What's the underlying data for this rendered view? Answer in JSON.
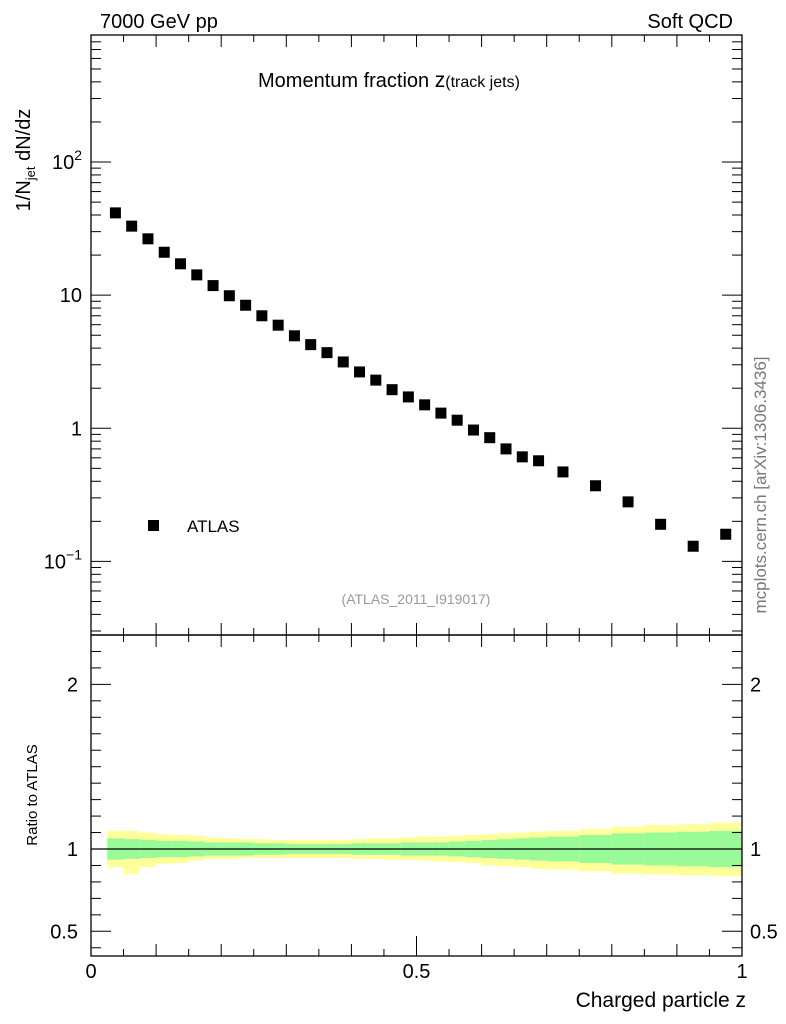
{
  "header": {
    "left": "7000 GeV pp",
    "right": "Soft QCD"
  },
  "side_label": "mcplots.cern.ch [arXiv:1306.3436]",
  "chart_data": {
    "type": "scatter",
    "title": {
      "main": "Momentum fraction ",
      "var": "z",
      "sub": "(track jets)"
    },
    "ylabel": {
      "a": "1/N",
      "sub": "jet",
      "b": " dN/dz"
    },
    "xlabel": "Charged particle z",
    "analysis_tag": "(ATLAS_2011_I919017)",
    "legend": {
      "entry": "ATLAS",
      "position": "lower-left"
    },
    "yscale": "log",
    "xlim": [
      0,
      1
    ],
    "ylim": [
      0.028,
      900
    ],
    "xticks": [
      {
        "v": 0,
        "label": "0"
      },
      {
        "v": 0.5,
        "label": "0.5"
      },
      {
        "v": 1,
        "label": "1"
      }
    ],
    "yticks_main": [
      {
        "v": 0.1,
        "base": "10",
        "exp": "−1"
      },
      {
        "v": 1,
        "base": "1",
        "exp": ""
      },
      {
        "v": 10,
        "base": "10",
        "exp": ""
      },
      {
        "v": 100,
        "base": "10",
        "exp": "2"
      }
    ],
    "series": [
      {
        "name": "ATLAS",
        "points": [
          [
            0.0375,
            41.5
          ],
          [
            0.0625,
            33.0
          ],
          [
            0.0875,
            26.5
          ],
          [
            0.1125,
            21.0
          ],
          [
            0.1375,
            17.2
          ],
          [
            0.1625,
            14.2
          ],
          [
            0.1875,
            11.8
          ],
          [
            0.2125,
            9.9
          ],
          [
            0.2375,
            8.4
          ],
          [
            0.2625,
            7.0
          ],
          [
            0.2875,
            5.95
          ],
          [
            0.3125,
            4.95
          ],
          [
            0.3375,
            4.25
          ],
          [
            0.3625,
            3.7
          ],
          [
            0.3875,
            3.15
          ],
          [
            0.4125,
            2.65
          ],
          [
            0.4375,
            2.3
          ],
          [
            0.4625,
            1.95
          ],
          [
            0.4875,
            1.72
          ],
          [
            0.5125,
            1.5
          ],
          [
            0.5375,
            1.3
          ],
          [
            0.5625,
            1.15
          ],
          [
            0.5875,
            0.97
          ],
          [
            0.6125,
            0.85
          ],
          [
            0.6375,
            0.7
          ],
          [
            0.6625,
            0.61
          ],
          [
            0.6875,
            0.57
          ],
          [
            0.725,
            0.47
          ],
          [
            0.775,
            0.37
          ],
          [
            0.825,
            0.28
          ],
          [
            0.875,
            0.19
          ],
          [
            0.925,
            0.13
          ],
          [
            0.975,
            0.16
          ]
        ]
      }
    ],
    "ratio": {
      "ylabel": "Ratio to ATLAS",
      "ylim": [
        0.35,
        2.3
      ],
      "yticks": [
        {
          "v": 0.5,
          "label": "0.5"
        },
        {
          "v": 1,
          "label": "1"
        },
        {
          "v": 2,
          "label": "2"
        }
      ],
      "reference_line": 1,
      "stat_color": "#98fb98",
      "total_color": "#ffff99",
      "bands": [
        [
          0.025,
          0.05,
          0.935,
          1.065,
          0.89,
          1.11
        ],
        [
          0.05,
          0.075,
          0.94,
          1.06,
          0.85,
          1.11
        ],
        [
          0.075,
          0.1,
          0.945,
          1.055,
          0.89,
          1.1
        ],
        [
          0.1,
          0.125,
          0.95,
          1.05,
          0.91,
          1.09
        ],
        [
          0.125,
          0.15,
          0.95,
          1.05,
          0.915,
          1.085
        ],
        [
          0.15,
          0.175,
          0.955,
          1.045,
          0.93,
          1.08
        ],
        [
          0.175,
          0.2,
          0.96,
          1.04,
          0.94,
          1.07
        ],
        [
          0.2,
          0.225,
          0.96,
          1.04,
          0.94,
          1.065
        ],
        [
          0.225,
          0.25,
          0.96,
          1.04,
          0.945,
          1.06
        ],
        [
          0.25,
          0.275,
          0.965,
          1.035,
          0.945,
          1.06
        ],
        [
          0.275,
          0.3,
          0.965,
          1.035,
          0.945,
          1.055
        ],
        [
          0.3,
          0.325,
          0.97,
          1.03,
          0.945,
          1.055
        ],
        [
          0.325,
          0.35,
          0.97,
          1.03,
          0.945,
          1.055
        ],
        [
          0.35,
          0.375,
          0.97,
          1.03,
          0.945,
          1.055
        ],
        [
          0.375,
          0.4,
          0.97,
          1.03,
          0.945,
          1.055
        ],
        [
          0.4,
          0.425,
          0.965,
          1.035,
          0.94,
          1.06
        ],
        [
          0.425,
          0.45,
          0.965,
          1.035,
          0.94,
          1.065
        ],
        [
          0.45,
          0.475,
          0.965,
          1.035,
          0.935,
          1.065
        ],
        [
          0.475,
          0.5,
          0.96,
          1.04,
          0.935,
          1.07
        ],
        [
          0.5,
          0.525,
          0.96,
          1.04,
          0.93,
          1.075
        ],
        [
          0.525,
          0.55,
          0.96,
          1.04,
          0.925,
          1.075
        ],
        [
          0.55,
          0.575,
          0.955,
          1.045,
          0.92,
          1.08
        ],
        [
          0.575,
          0.6,
          0.95,
          1.05,
          0.915,
          1.085
        ],
        [
          0.6,
          0.625,
          0.945,
          1.055,
          0.9,
          1.09
        ],
        [
          0.625,
          0.65,
          0.94,
          1.06,
          0.895,
          1.095
        ],
        [
          0.65,
          0.675,
          0.935,
          1.065,
          0.89,
          1.1
        ],
        [
          0.675,
          0.7,
          0.93,
          1.07,
          0.88,
          1.105
        ],
        [
          0.7,
          0.75,
          0.925,
          1.075,
          0.875,
          1.11
        ],
        [
          0.75,
          0.8,
          0.915,
          1.085,
          0.865,
          1.12
        ],
        [
          0.8,
          0.85,
          0.905,
          1.095,
          0.85,
          1.135
        ],
        [
          0.85,
          0.9,
          0.9,
          1.1,
          0.845,
          1.145
        ],
        [
          0.9,
          0.95,
          0.895,
          1.105,
          0.84,
          1.15
        ],
        [
          0.95,
          1.0,
          0.89,
          1.11,
          0.835,
          1.16
        ]
      ]
    }
  }
}
